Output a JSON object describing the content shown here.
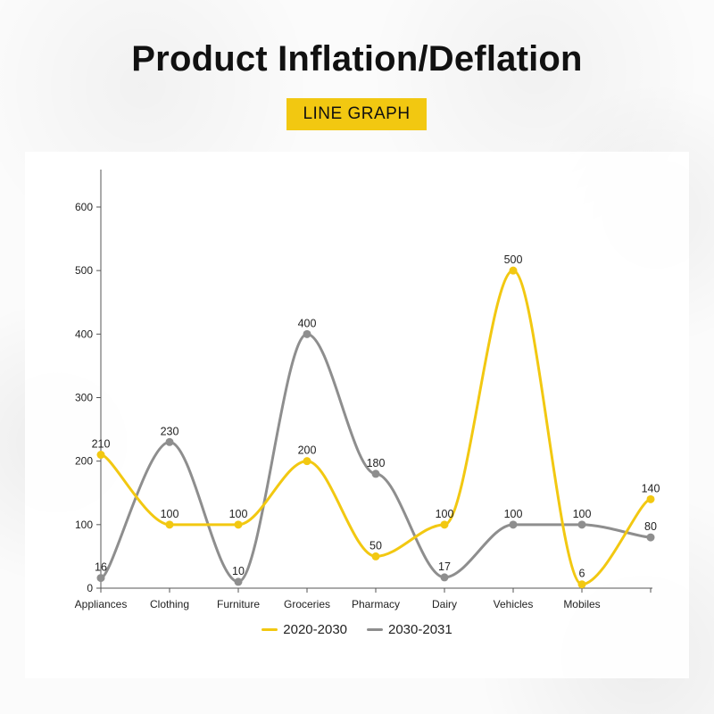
{
  "header": {
    "title": "Product Inflation/Deflation",
    "badge": "LINE GRAPH"
  },
  "colors": {
    "accent": "#F2C811",
    "series_1": "#F2C811",
    "series_2": "#8E8E8E",
    "axis": "#555555",
    "text": "#222222"
  },
  "chart_data": {
    "type": "line",
    "title": "Product Inflation/Deflation",
    "subtitle": "LINE GRAPH",
    "categories": [
      "Appliances",
      "Clothing",
      "Furniture",
      "Groceries",
      "Pharmacy",
      "Dairy",
      "Vehicles",
      "Mobiles",
      ""
    ],
    "series": [
      {
        "name": "2020-2030",
        "values": [
          210,
          100,
          100,
          200,
          50,
          100,
          500,
          6,
          140
        ],
        "color": "#F2C811"
      },
      {
        "name": "2030-2031",
        "values": [
          16,
          230,
          10,
          400,
          180,
          17,
          100,
          100,
          80
        ],
        "color": "#8E8E8E"
      }
    ],
    "xlabel": "",
    "ylabel": "",
    "ylim": [
      0,
      650
    ],
    "yticks": [
      0,
      100,
      200,
      300,
      400,
      500,
      600
    ],
    "grid": false,
    "smooth": true,
    "legend_position": "bottom"
  }
}
